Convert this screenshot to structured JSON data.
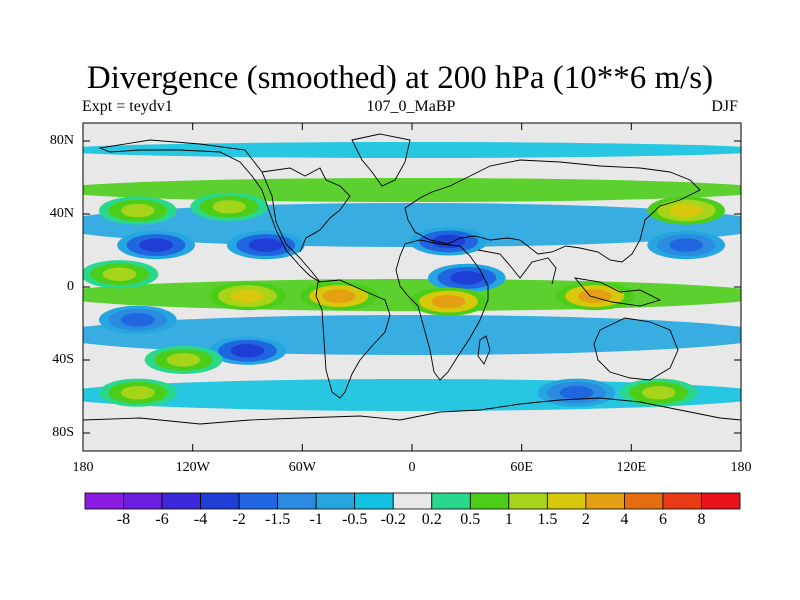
{
  "title": "Divergence (smoothed) at 200 hPa (10**6 m/s)",
  "subtitle_left": "Expt = teydv1",
  "subtitle_center": "107_0_MaBP",
  "subtitle_right": "DJF",
  "lat_labels": [
    "80N",
    "40N",
    "0",
    "40S",
    "80S"
  ],
  "lon_labels": [
    "180",
    "120W",
    "60W",
    "0",
    "60E",
    "120E",
    "180"
  ],
  "colorbar": {
    "labels": [
      "-8",
      "-6",
      "-4",
      "-2",
      "-1.5",
      "-1",
      "-0.5",
      "-0.2",
      "0.2",
      "0.5",
      "1",
      "1.5",
      "2",
      "4",
      "6",
      "8"
    ],
    "colors": [
      "#8b1ce0",
      "#6a1fe0",
      "#3c28d8",
      "#1f3ed6",
      "#1f66e0",
      "#2a8be0",
      "#25a6e0",
      "#12c2e0",
      "#e8e8e8",
      "#2ad88c",
      "#4ccd1a",
      "#a5d41a",
      "#d8c80c",
      "#e2a012",
      "#e66c10",
      "#e83a14",
      "#e8131b"
    ]
  },
  "chart_data": {
    "type": "heatmap",
    "title": "Divergence (smoothed) at 200 hPa (10**6 m/s)",
    "variable": "Divergence (smoothed)",
    "level": "200 hPa",
    "units": "10**6 m/s",
    "season": "DJF",
    "experiment": "teydv1",
    "xlim": [
      -180,
      180
    ],
    "ylim": [
      -90,
      90
    ],
    "levels": [
      -8,
      -6,
      -4,
      -2,
      -1.5,
      -1,
      -0.5,
      -0.2,
      0.2,
      0.5,
      1,
      1.5,
      2,
      4,
      6,
      8
    ],
    "features": [
      {
        "lon": -140,
        "lat": 23,
        "value": -3
      },
      {
        "lon": -80,
        "lat": 23,
        "value": -3
      },
      {
        "lon": 20,
        "lat": 25,
        "value": -3
      },
      {
        "lon": 30,
        "lat": 5,
        "value": -3
      },
      {
        "lon": 150,
        "lat": 23,
        "value": -2
      },
      {
        "lon": -100,
        "lat": 44,
        "value": 1.2
      },
      {
        "lon": -150,
        "lat": 42,
        "value": 1.2
      },
      {
        "lon": 150,
        "lat": 42,
        "value": 1.8
      },
      {
        "lon": -160,
        "lat": 7,
        "value": 1.2
      },
      {
        "lon": 100,
        "lat": -5,
        "value": 3
      },
      {
        "lon": 20,
        "lat": -8,
        "value": 3
      },
      {
        "lon": -90,
        "lat": -5,
        "value": 1.8
      },
      {
        "lon": -40,
        "lat": -5,
        "value": 3
      },
      {
        "lon": -150,
        "lat": -18,
        "value": -1.8
      },
      {
        "lon": -90,
        "lat": -35,
        "value": -3
      },
      {
        "lon": -125,
        "lat": -40,
        "value": 1.2
      },
      {
        "lon": -150,
        "lat": -58,
        "value": 1.2
      },
      {
        "lon": 135,
        "lat": -58,
        "value": 1.2
      },
      {
        "lon": 90,
        "lat": -58,
        "value": -2
      }
    ]
  }
}
